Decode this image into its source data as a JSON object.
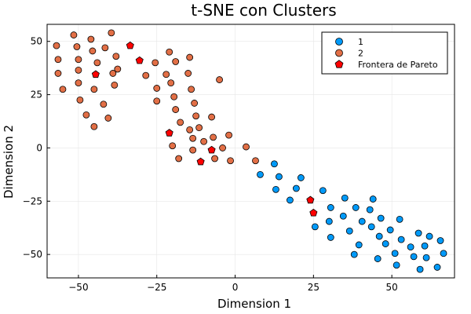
{
  "chart_data": {
    "type": "scatter",
    "title": "t-SNE con Clusters",
    "xlabel": "Dimension 1",
    "ylabel": "Dimension 2",
    "xlim": [
      -60,
      70
    ],
    "ylim": [
      -61,
      58
    ],
    "xticks": [
      -50,
      -25,
      0,
      25,
      50
    ],
    "yticks": [
      -50,
      -25,
      0,
      25,
      50
    ],
    "xtick_labels": [
      "−50",
      "−25",
      "0",
      "25",
      "50"
    ],
    "ytick_labels": [
      "−50",
      "−25",
      "0",
      "25",
      "50"
    ],
    "grid": true,
    "legend_position": "top-right",
    "series": [
      {
        "name": "1",
        "color": "#009AF9",
        "marker": "circle",
        "points": [
          [
            12.5,
            -7.5
          ],
          [
            14.0,
            -13.5
          ],
          [
            13.0,
            -19.5
          ],
          [
            8.0,
            -12.5
          ],
          [
            17.5,
            -24.5
          ],
          [
            19.5,
            -19.0
          ],
          [
            21.0,
            -14.0
          ],
          [
            28.0,
            -20.0
          ],
          [
            30.5,
            -28.0
          ],
          [
            25.5,
            -37.0
          ],
          [
            30.0,
            -34.5
          ],
          [
            30.5,
            -42.0
          ],
          [
            35.0,
            -23.5
          ],
          [
            34.5,
            -32.0
          ],
          [
            36.5,
            -39.0
          ],
          [
            38.0,
            -50.0
          ],
          [
            38.5,
            -28.0
          ],
          [
            39.5,
            -45.5
          ],
          [
            40.5,
            -34.5
          ],
          [
            44.0,
            -24.0
          ],
          [
            43.0,
            -29.0
          ],
          [
            43.5,
            -37.0
          ],
          [
            45.5,
            -52.0
          ],
          [
            46.0,
            -41.5
          ],
          [
            46.5,
            -33.0
          ],
          [
            48.0,
            -45.0
          ],
          [
            49.5,
            -38.5
          ],
          [
            51.0,
            -49.5
          ],
          [
            51.5,
            -55.0
          ],
          [
            52.5,
            -33.5
          ],
          [
            53.0,
            -43.0
          ],
          [
            56.0,
            -46.5
          ],
          [
            57.0,
            -51.0
          ],
          [
            58.5,
            -40.0
          ],
          [
            59.0,
            -57.0
          ],
          [
            60.5,
            -46.0
          ],
          [
            61.0,
            -51.5
          ],
          [
            62.0,
            -41.5
          ],
          [
            64.5,
            -56.0
          ],
          [
            65.5,
            -43.5
          ],
          [
            66.5,
            -49.5
          ]
        ]
      },
      {
        "name": "2",
        "color": "#E26F46",
        "marker": "circle",
        "points": [
          [
            -57.0,
            48.0
          ],
          [
            -56.5,
            41.5
          ],
          [
            -56.5,
            35.0
          ],
          [
            -55.0,
            27.5
          ],
          [
            -51.5,
            53.0
          ],
          [
            -50.5,
            47.5
          ],
          [
            -50.0,
            41.5
          ],
          [
            -50.0,
            36.5
          ],
          [
            -50.0,
            30.5
          ],
          [
            -49.5,
            22.5
          ],
          [
            -47.5,
            15.5
          ],
          [
            -46.0,
            51.0
          ],
          [
            -45.5,
            45.5
          ],
          [
            -45.0,
            10.0
          ],
          [
            -45.0,
            27.5
          ],
          [
            -44.0,
            40.0
          ],
          [
            -42.0,
            20.5
          ],
          [
            -41.5,
            47.0
          ],
          [
            -40.5,
            14.0
          ],
          [
            -39.5,
            54.0
          ],
          [
            -39.0,
            35.0
          ],
          [
            -38.5,
            29.5
          ],
          [
            -38.0,
            43.0
          ],
          [
            -37.5,
            37.0
          ],
          [
            -28.5,
            34.0
          ],
          [
            -25.5,
            40.0
          ],
          [
            -25.0,
            28.0
          ],
          [
            -25.0,
            22.0
          ],
          [
            -22.0,
            34.5
          ],
          [
            -21.0,
            45.0
          ],
          [
            -20.5,
            30.5
          ],
          [
            -20.0,
            1.0
          ],
          [
            -19.5,
            24.0
          ],
          [
            -19.0,
            18.0
          ],
          [
            -19.0,
            40.5
          ],
          [
            -18.0,
            -5.0
          ],
          [
            -17.5,
            12.0
          ],
          [
            -15.0,
            35.0
          ],
          [
            -14.5,
            8.5
          ],
          [
            -14.5,
            42.5
          ],
          [
            -14.0,
            27.5
          ],
          [
            -13.5,
            4.5
          ],
          [
            -13.5,
            -1.0
          ],
          [
            -13.0,
            21.0
          ],
          [
            -12.5,
            15.0
          ],
          [
            -11.5,
            9.5
          ],
          [
            -10.0,
            3.0
          ],
          [
            -7.5,
            14.5
          ],
          [
            -7.0,
            5.0
          ],
          [
            -6.5,
            -5.0
          ],
          [
            -5.0,
            32.0
          ],
          [
            -4.0,
            0.0
          ],
          [
            -2.0,
            6.0
          ],
          [
            -1.5,
            -6.0
          ],
          [
            3.5,
            0.5
          ],
          [
            6.5,
            -6.0
          ]
        ]
      },
      {
        "name": "Frontera de Pareto",
        "color": "#FF0000",
        "marker": "pentagon",
        "points": [
          [
            -44.5,
            34.5
          ],
          [
            -33.5,
            48.0
          ],
          [
            -30.5,
            41.0
          ],
          [
            -21.0,
            7.0
          ],
          [
            -11.0,
            -6.5
          ],
          [
            -7.5,
            -1.0
          ],
          [
            24.0,
            -24.5
          ],
          [
            25.0,
            -30.5
          ]
        ]
      }
    ]
  }
}
